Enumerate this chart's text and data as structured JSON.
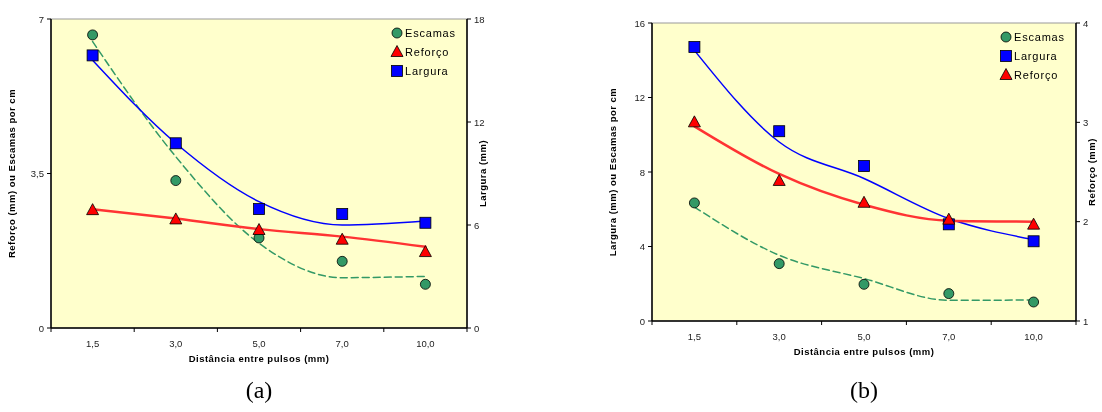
{
  "chart_data": [
    {
      "type": "scatter",
      "xlabel": "Distância entre pulsos (mm)",
      "ylabel": "Reforço (mm) ou Escamas por cm",
      "y2label": "Largura (mm)",
      "annotations": [
        "(a)"
      ],
      "categories": [
        "1,5",
        "3,0",
        "5,0",
        "7,0",
        "10,0"
      ],
      "ylim": [
        0,
        7
      ],
      "yticks": [
        0,
        {
          "value": 3.5,
          "label": "3,5"
        },
        7
      ],
      "y2lim": [
        0,
        18
      ],
      "y2ticks": [
        0,
        6,
        12,
        18
      ],
      "legend": "top right",
      "series": [
        {
          "type": "line",
          "color": "#339966",
          "line_style": "dashed",
          "marker": "none",
          "values": [
            6.49,
            3.88,
            1.92,
            1.14,
            1.17
          ]
        },
        {
          "type": "line",
          "color": "#ff3333",
          "line_style": "solid",
          "marker": "none",
          "values": [
            2.69,
            2.48,
            2.24,
            2.07,
            1.84
          ]
        },
        {
          "type": "line",
          "color": "#0000ff",
          "line_style": "solid",
          "marker": "none",
          "axis": "y2",
          "values": [
            15.6,
            10.76,
            7.36,
            6.0,
            6.23
          ]
        },
        {
          "name": "Escamas",
          "color": "#339966",
          "marker": "circle",
          "values": [
            6.64,
            3.34,
            2.04,
            1.51,
            0.99
          ]
        },
        {
          "name": "Reforço",
          "color": "#ff0000",
          "marker": "triangle",
          "values": [
            2.67,
            2.46,
            2.22,
            2.0,
            1.72
          ]
        },
        {
          "name": "Largura",
          "color": "#0000ff",
          "marker": "square",
          "axis": "y2",
          "values": [
            15.88,
            10.76,
            6.93,
            6.64,
            6.13
          ]
        }
      ]
    },
    {
      "type": "scatter",
      "xlabel": "Distância entre pulsos (mm)",
      "ylabel": "Largura (mm) ou  Escamas por cm",
      "y2label": "Reforço (mm)",
      "annotations": [
        "(b)"
      ],
      "categories": [
        "1,5",
        "3,0",
        "5,0",
        "7,0",
        "10,0"
      ],
      "ylim": [
        0,
        16
      ],
      "yticks": [
        0,
        4,
        8,
        12,
        16
      ],
      "y2lim": [
        1,
        4
      ],
      "y2ticks": [
        1,
        2,
        3,
        4
      ],
      "legend": "top right",
      "series": [
        {
          "type": "line",
          "color": "#339966",
          "line_style": "dashed",
          "marker": "none",
          "values": [
            6.12,
            3.53,
            2.28,
            1.11,
            1.13
          ]
        },
        {
          "type": "line",
          "color": "#0000ff",
          "line_style": "solid",
          "marker": "none",
          "values": [
            14.53,
            9.61,
            7.65,
            5.5,
            4.37
          ]
        },
        {
          "type": "line",
          "color": "#ff3333",
          "line_style": "solid",
          "marker": "none",
          "axis": "y2",
          "values": [
            2.96,
            2.48,
            2.17,
            2.01,
            2.0
          ]
        },
        {
          "name": "Escamas",
          "color": "#339966",
          "marker": "circle",
          "values": [
            6.34,
            3.08,
            1.97,
            1.47,
            1.02
          ]
        },
        {
          "name": "Largura",
          "color": "#0000ff",
          "marker": "square",
          "values": [
            14.71,
            10.19,
            8.32,
            5.19,
            4.28
          ]
        },
        {
          "name": "Reforço",
          "color": "#ff0000",
          "marker": "triangle",
          "axis": "y2",
          "values": [
            3.0,
            2.41,
            2.19,
            2.02,
            1.97
          ]
        }
      ]
    }
  ]
}
